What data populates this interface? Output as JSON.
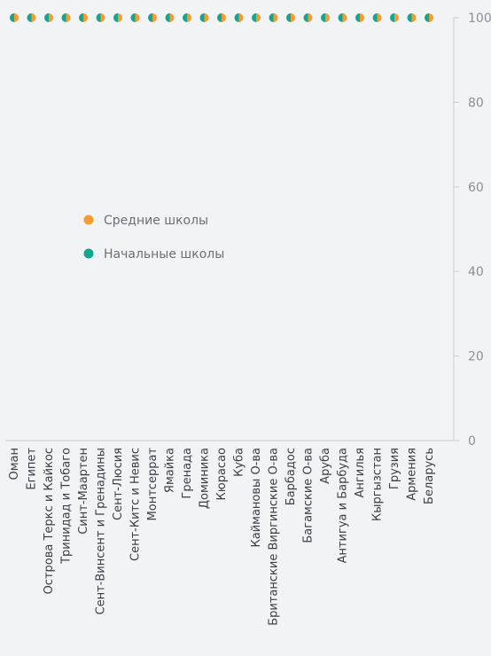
{
  "chart_data": {
    "type": "scatter",
    "categories": [
      "Оман",
      "Египет",
      "Острова Теркс и Кайкос",
      "Тринидад и Тобаго",
      "Синт-Маартен",
      "Сент-Винсент и Гренадины",
      "Сент-Люсия",
      "Сент-Китс и Невис",
      "Монтсеррат",
      "Ямайка",
      "Гренада",
      "Доминика",
      "Кюрасао",
      "Куба",
      "Каймановы О-ва",
      "Британские Виргинские О-ва",
      "Барбадос",
      "Багамские О-ва",
      "Аруба",
      "Антигуа и Барбуда",
      "Ангилья",
      "Кыргызстан",
      "Грузия",
      "Армения",
      "Беларусь"
    ],
    "series": [
      {
        "name": "Средние школы",
        "color": "#f39c2f",
        "values": [
          100,
          100,
          100,
          100,
          100,
          100,
          100,
          100,
          100,
          100,
          100,
          100,
          100,
          100,
          100,
          100,
          100,
          100,
          100,
          100,
          100,
          100,
          100,
          100,
          100
        ]
      },
      {
        "name": "Начальные школы",
        "color": "#12a58f",
        "values": [
          100,
          100,
          100,
          100,
          100,
          100,
          100,
          100,
          100,
          100,
          100,
          100,
          100,
          100,
          100,
          100,
          100,
          100,
          100,
          100,
          100,
          100,
          100,
          100,
          100
        ]
      }
    ],
    "ylim": [
      0,
      100
    ],
    "yticks": [
      0,
      20,
      40,
      60,
      80,
      100
    ],
    "grid": false,
    "legend_placement": "center-left",
    "axis_side": "right"
  }
}
